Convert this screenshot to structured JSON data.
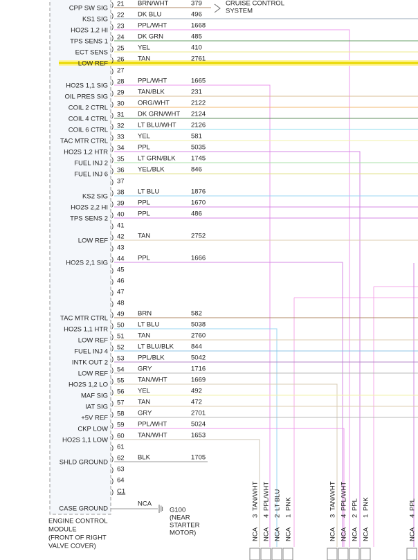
{
  "rows": [
    {
      "pin": "21",
      "label": "CPP SW SIG",
      "wire": "BRN/WHT",
      "circuit": "379",
      "color": "#b08a66"
    },
    {
      "pin": "22",
      "label": "KS1 SIG",
      "wire": "DK BLU",
      "circuit": "496",
      "color": "#98a8b8"
    },
    {
      "pin": "23",
      "label": "HO2S 1,2 HI",
      "wire": "PPL/WHT",
      "circuit": "1668",
      "color": "#ee99ee"
    },
    {
      "pin": "24",
      "label": "TPS SENS 1",
      "wire": "DK GRN",
      "circuit": "485",
      "color": "#6aa06a"
    },
    {
      "pin": "25",
      "label": "ECT SENS",
      "wire": "YEL",
      "circuit": "410",
      "color": "#eee888"
    },
    {
      "pin": "26",
      "label": "LOW REF",
      "wire": "TAN",
      "circuit": "2761",
      "color": "#e8d800",
      "highlighted": true
    },
    {
      "pin": "27"
    },
    {
      "pin": "28",
      "label": "HO2S 1,1 SIG",
      "wire": "PPL/WHT",
      "circuit": "1665",
      "color": "#ee99ee"
    },
    {
      "pin": "29",
      "label": "OIL PRES SIG",
      "wire": "TAN/BLK",
      "circuit": "231",
      "color": "#d8bc96"
    },
    {
      "pin": "30",
      "label": "COIL 2 CTRL",
      "wire": "ORG/WHT",
      "circuit": "2122",
      "color": "#f0b870"
    },
    {
      "pin": "31",
      "label": "COIL 4 CTRL",
      "wire": "DK GRN/WHT",
      "circuit": "2124",
      "color": "#5e8e5e"
    },
    {
      "pin": "32",
      "label": "COIL 6 CTRL",
      "wire": "LT BLU/WHT",
      "circuit": "2126",
      "color": "#8fdcee"
    },
    {
      "pin": "33",
      "label": "TAC MTR CTRL",
      "wire": "YEL",
      "circuit": "581",
      "color": "#f2f0a8"
    },
    {
      "pin": "34",
      "label": "HO2S 1,2 HTR",
      "wire": "PPL",
      "circuit": "5035",
      "color": "#d488e4"
    },
    {
      "pin": "35",
      "label": "FUEL INJ 2",
      "wire": "LT GRN/BLK",
      "circuit": "1745",
      "color": "#a8e2a8"
    },
    {
      "pin": "36",
      "label": "FUEL INJ 6",
      "wire": "YEL/BLK",
      "circuit": "846",
      "color": "#e2e08a"
    },
    {
      "pin": "37"
    },
    {
      "pin": "38",
      "label": "KS2 SIG",
      "wire": "LT BLU",
      "circuit": "1876",
      "color": "#98d4f2"
    },
    {
      "pin": "39",
      "label": "HO2S 2,2 HI",
      "wire": "PPL",
      "circuit": "1670",
      "color": "#d488e4"
    },
    {
      "pin": "40",
      "label": "TPS SENS 2",
      "wire": "PPL",
      "circuit": "486",
      "color": "#d488e4"
    },
    {
      "pin": "41"
    },
    {
      "pin": "42",
      "label": "LOW REF",
      "wire": "TAN",
      "circuit": "2752",
      "color": "#dccdb0"
    },
    {
      "pin": "43"
    },
    {
      "pin": "44",
      "label": "HO2S 2,1 SIG",
      "wire": "PPL",
      "circuit": "1666",
      "color": "#d488e4"
    },
    {
      "pin": "45"
    },
    {
      "pin": "46"
    },
    {
      "pin": "47"
    },
    {
      "pin": "48"
    },
    {
      "pin": "49",
      "label": "TAC MTR CTRL",
      "wire": "BRN",
      "circuit": "582",
      "color": "#b08a66"
    },
    {
      "pin": "50",
      "label": "HO2S 1,1 HTR",
      "wire": "LT BLU",
      "circuit": "5038",
      "color": "#98d4f2"
    },
    {
      "pin": "51",
      "label": "LOW REF",
      "wire": "TAN",
      "circuit": "2760",
      "color": "#dccdb0"
    },
    {
      "pin": "52",
      "label": "FUEL INJ 4",
      "wire": "LT BLU/BLK",
      "circuit": "844",
      "color": "#8cc4e4"
    },
    {
      "pin": "53",
      "label": "INTK OUT 2",
      "wire": "PPL/BLK",
      "circuit": "5042",
      "color": "#b488c8"
    },
    {
      "pin": "54",
      "label": "LOW REF",
      "wire": "GRY",
      "circuit": "1716",
      "color": "#b8b8b8"
    },
    {
      "pin": "55",
      "label": "HO2S 1,2 LO",
      "wire": "TAN/WHT",
      "circuit": "1669",
      "color": "#d8ccb4"
    },
    {
      "pin": "56",
      "label": "MAF SIG",
      "wire": "YEL",
      "circuit": "492",
      "color": "#f2f0a8"
    },
    {
      "pin": "57",
      "label": "IAT SIG",
      "wire": "TAN",
      "circuit": "472",
      "color": "#dccdb0"
    },
    {
      "pin": "58",
      "label": "+5V REF",
      "wire": "GRY",
      "circuit": "2701",
      "color": "#b8b8b8"
    },
    {
      "pin": "59",
      "label": "CKP LOW",
      "wire": "PPL/WHT",
      "circuit": "5024",
      "color": "#ee99ee"
    },
    {
      "pin": "60",
      "label": "HO2S 1,1 LOW",
      "wire": "TAN/WHT",
      "circuit": "1653",
      "color": "#ccc4b4"
    },
    {
      "pin": "61"
    },
    {
      "pin": "62",
      "label": "SHLD GROUND",
      "wire": "BLK",
      "circuit": "1705",
      "color": "#999999"
    },
    {
      "pin": "63"
    },
    {
      "pin": "64"
    },
    {
      "pin": "C1"
    }
  ],
  "cruise": [
    "CRUISE CONTROL",
    "SYSTEM"
  ],
  "case_ground": {
    "label": "CASE GROUND",
    "nca": "NCA",
    "ground": "G100",
    "location": [
      "(NEAR",
      "STARTER",
      "MOTOR)"
    ]
  },
  "module": [
    "ENGINE CONTROL",
    "MODULE",
    "(FRONT OF RIGHT",
    "VALVE COVER)"
  ],
  "connectors": [
    {
      "pins": [
        {
          "num": "3",
          "wire": "TAN/WHT",
          "nca": "NCA"
        },
        {
          "num": "4",
          "wire": "PPL/WHT",
          "nca": "NCA"
        },
        {
          "num": "2",
          "wire": "LT BLU",
          "nca": "NCA"
        },
        {
          "num": "1",
          "wire": "PNK",
          "nca": "NCA"
        }
      ]
    },
    {
      "pins": [
        {
          "num": "3",
          "wire": "TAN/WHT",
          "nca": "NCA"
        },
        {
          "num": "4",
          "wire": "PPL/WHT",
          "nca": "NCA"
        },
        {
          "num": "2",
          "wire": "PPL",
          "nca": "NCA"
        },
        {
          "num": "1",
          "wire": "PNK",
          "nca": "NCA"
        }
      ]
    },
    {
      "pins": [
        {
          "num": "4",
          "wire": "PPL",
          "nca": "NCA"
        }
      ]
    }
  ]
}
